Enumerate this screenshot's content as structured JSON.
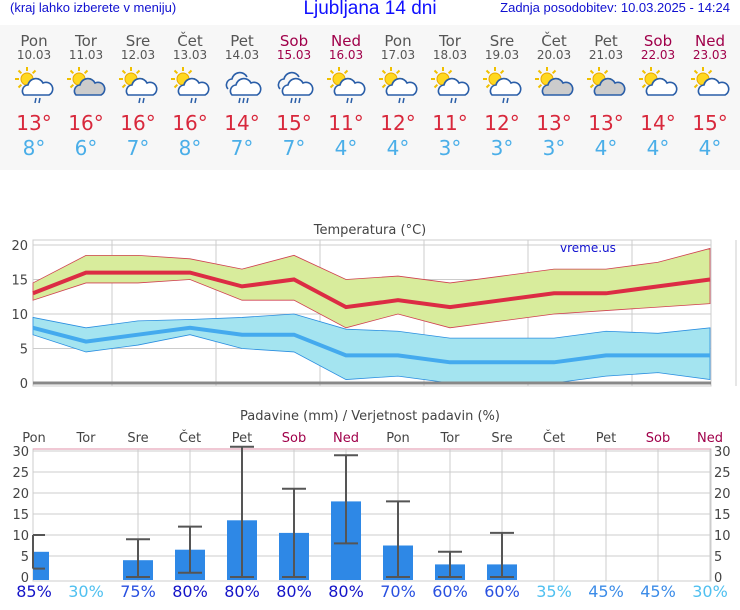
{
  "header": {
    "left": "(kraj lahko izberete v meniju)",
    "title": "Ljubljana 14 dni",
    "right": "Zadnja posodobitev: 10.03.2025 - 14:24"
  },
  "days": [
    {
      "name": "Pon",
      "date": "10.03",
      "icon": "sun-cloud-rain",
      "max": "13°",
      "min": "8°",
      "weekend": false
    },
    {
      "name": "Tor",
      "date": "11.03",
      "icon": "sun-cloud",
      "max": "16°",
      "min": "6°",
      "weekend": false
    },
    {
      "name": "Sre",
      "date": "12.03",
      "icon": "sun-cloud-rain",
      "max": "16°",
      "min": "7°",
      "weekend": false
    },
    {
      "name": "Čet",
      "date": "13.03",
      "icon": "sun-cloud-rain",
      "max": "16°",
      "min": "8°",
      "weekend": false
    },
    {
      "name": "Pet",
      "date": "14.03",
      "icon": "cloud-rain",
      "max": "14°",
      "min": "7°",
      "weekend": false
    },
    {
      "name": "Sob",
      "date": "15.03",
      "icon": "cloud-rain",
      "max": "15°",
      "min": "7°",
      "weekend": true
    },
    {
      "name": "Ned",
      "date": "16.03",
      "icon": "sun-cloud-rain",
      "max": "11°",
      "min": "4°",
      "weekend": true
    },
    {
      "name": "Pon",
      "date": "17.03",
      "icon": "sun-cloud-rain",
      "max": "12°",
      "min": "4°",
      "weekend": false
    },
    {
      "name": "Tor",
      "date": "18.03",
      "icon": "sun-cloud-rain",
      "max": "11°",
      "min": "3°",
      "weekend": false
    },
    {
      "name": "Sre",
      "date": "19.03",
      "icon": "sun-cloud-rain",
      "max": "12°",
      "min": "3°",
      "weekend": false
    },
    {
      "name": "Čet",
      "date": "20.03",
      "icon": "sun-cloud",
      "max": "13°",
      "min": "3°",
      "weekend": false
    },
    {
      "name": "Pet",
      "date": "21.03",
      "icon": "sun-cloud",
      "max": "13°",
      "min": "4°",
      "weekend": false
    },
    {
      "name": "Sob",
      "date": "22.03",
      "icon": "sun-cloud-light",
      "max": "14°",
      "min": "4°",
      "weekend": true
    },
    {
      "name": "Ned",
      "date": "23.03",
      "icon": "sun-cloud-light",
      "max": "15°",
      "min": "4°",
      "weekend": true
    }
  ],
  "chart_data": [
    {
      "type": "line",
      "title": "Temperatura (°C)",
      "watermark": "vreme.us",
      "ylim": [
        0,
        20
      ],
      "yticks": [
        "0",
        "5",
        "10",
        "15",
        "20"
      ],
      "series": [
        {
          "name": "max",
          "values": [
            13,
            16,
            16,
            16,
            14,
            15,
            11,
            12,
            11,
            12,
            13,
            13,
            14,
            15
          ],
          "color": "#dc2c44",
          "band_high": [
            14.5,
            18.5,
            18.5,
            18,
            16.5,
            18.5,
            15,
            15.5,
            14.5,
            15.5,
            16.5,
            16.5,
            17.5,
            19.5
          ],
          "band_low": [
            12,
            14.5,
            14.5,
            15,
            12,
            12,
            8,
            10,
            8,
            9,
            10,
            10.5,
            11,
            11.5
          ],
          "band_color": "#d8ec9c"
        },
        {
          "name": "min",
          "values": [
            8,
            6,
            7,
            8,
            7,
            7,
            4,
            4,
            3,
            3,
            3,
            4,
            4,
            4
          ],
          "color": "#44aaee",
          "band_high": [
            9.5,
            8,
            9,
            9.2,
            9.5,
            10,
            7.8,
            7.5,
            6.5,
            6.5,
            6.5,
            7.5,
            7.2,
            8
          ],
          "band_low": [
            7,
            4.5,
            5.5,
            7,
            5,
            4.5,
            0.5,
            1,
            0,
            0,
            0,
            1,
            1.5,
            0.5
          ],
          "band_color": "#a4e4f0"
        }
      ]
    },
    {
      "type": "bar",
      "title": "Padavine (mm) / Verjetnost padavin (%)",
      "ylim": [
        0,
        30
      ],
      "yticks": [
        "0",
        "5",
        "10",
        "15",
        "20",
        "25",
        "30"
      ],
      "categories": [
        "Pon",
        "Tor",
        "Sre",
        "Čet",
        "Pet",
        "Sob",
        "Ned",
        "Pon",
        "Tor",
        "Sre",
        "Čet",
        "Pet",
        "Sob",
        "Ned"
      ],
      "values": [
        6,
        0,
        4,
        6.5,
        13.5,
        10.5,
        18,
        7.5,
        3,
        3,
        0,
        0,
        0,
        0
      ],
      "err_low": [
        2,
        null,
        0,
        1,
        0,
        0,
        8,
        0,
        0,
        0,
        null,
        null,
        null,
        null
      ],
      "err_high": [
        10,
        null,
        9,
        12,
        31,
        21,
        29,
        18,
        6,
        10.5,
        null,
        null,
        null,
        null
      ],
      "probability": [
        "85%",
        "30%",
        "75%",
        "80%",
        "80%",
        "80%",
        "80%",
        "70%",
        "60%",
        "60%",
        "35%",
        "45%",
        "45%",
        "30%"
      ],
      "prob_values": [
        85,
        30,
        75,
        80,
        80,
        80,
        80,
        70,
        60,
        60,
        35,
        45,
        45,
        30
      ]
    }
  ]
}
